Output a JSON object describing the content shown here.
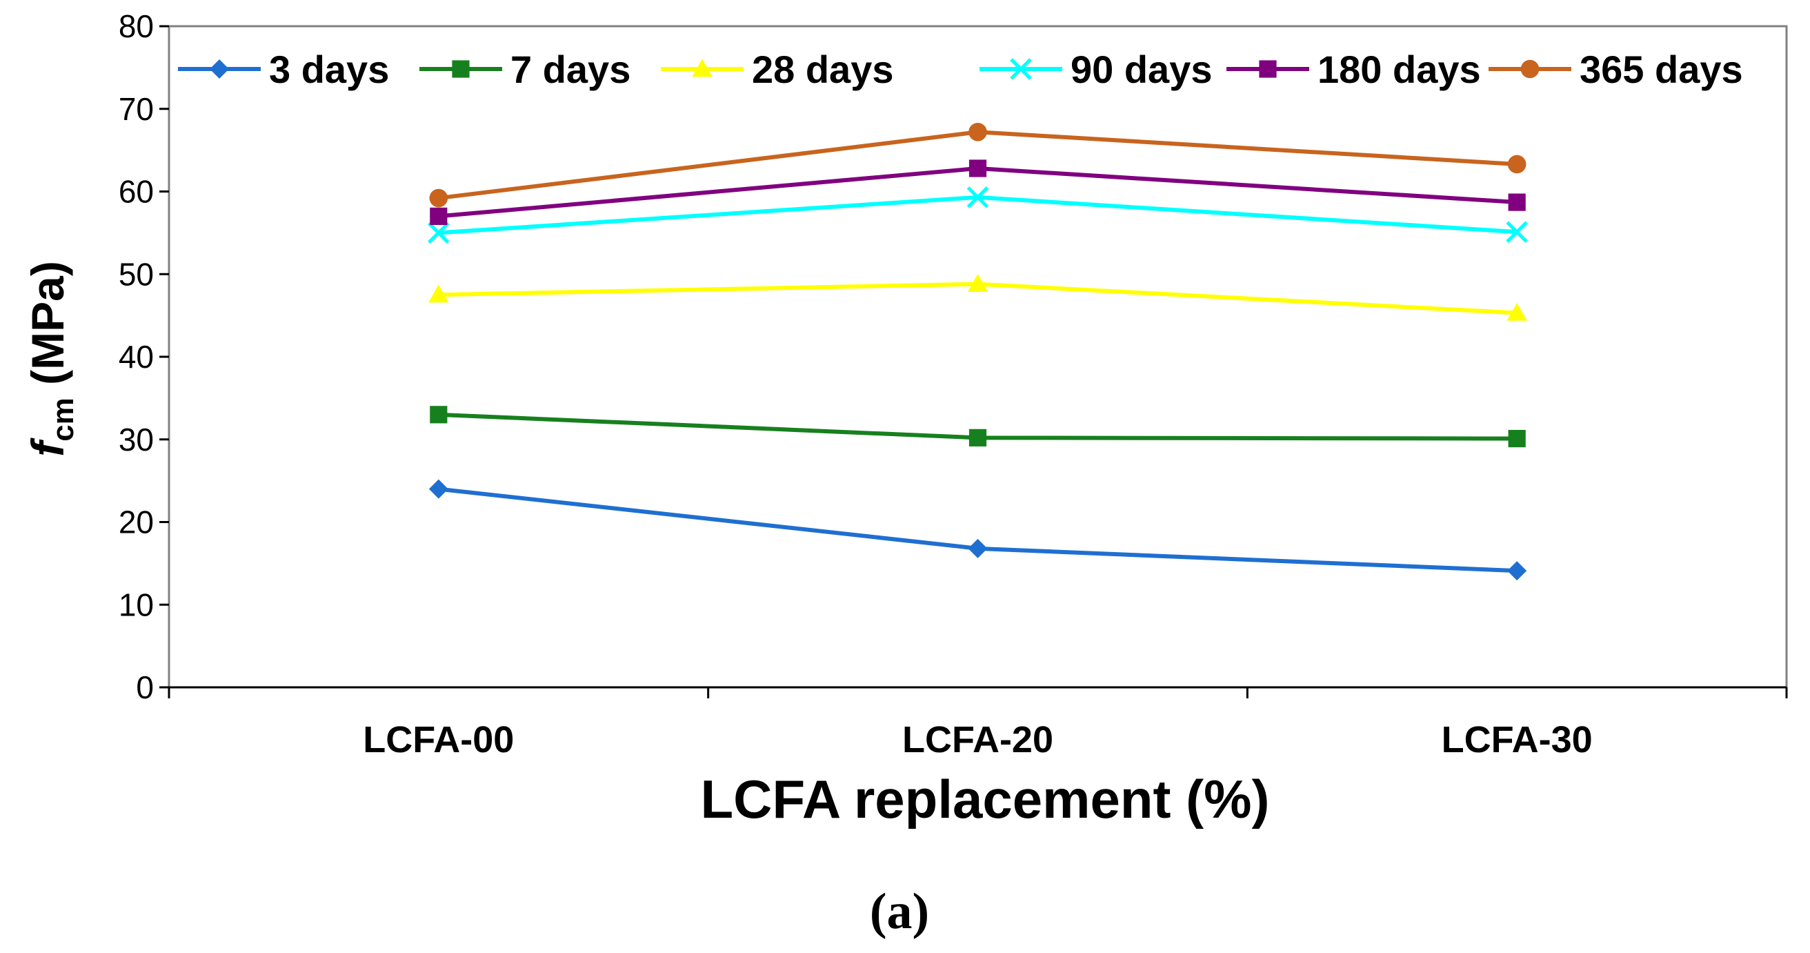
{
  "chart_data": {
    "type": "line",
    "title": "",
    "xlabel": "LCFA replacement (%)",
    "ylabel": {
      "main": "f",
      "sub": "cm",
      "unit": " (MPa)"
    },
    "ylim": [
      0,
      80
    ],
    "yticks": [
      0,
      10,
      20,
      30,
      40,
      50,
      60,
      70,
      80
    ],
    "categories": [
      "LCFA-00",
      "LCFA-20",
      "LCFA-30"
    ],
    "grid": false,
    "legend_position": "top",
    "series": [
      {
        "name": "3 days",
        "color": "#1f6fd1",
        "marker": "diamond",
        "values": [
          24.0,
          16.8,
          14.1
        ]
      },
      {
        "name": "7 days",
        "color": "#17801e",
        "marker": "square",
        "values": [
          33.0,
          30.2,
          30.1
        ]
      },
      {
        "name": "28 days",
        "color": "#ffff00",
        "marker": "triangle",
        "values": [
          47.5,
          48.8,
          45.3
        ]
      },
      {
        "name": "90 days",
        "color": "#00ffff",
        "marker": "x",
        "values": [
          55.0,
          59.3,
          55.1
        ]
      },
      {
        "name": "180 days",
        "color": "#800080",
        "marker": "square",
        "values": [
          57.0,
          62.8,
          58.7
        ]
      },
      {
        "name": "365 days",
        "color": "#c8641e",
        "marker": "circle",
        "values": [
          59.2,
          67.2,
          63.3
        ]
      }
    ]
  },
  "caption": "(a)"
}
